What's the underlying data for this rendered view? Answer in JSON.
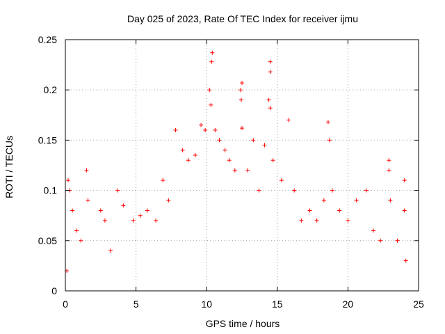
{
  "chart_data": {
    "type": "scatter",
    "title": "Day 025 of 2023, Rate Of TEC Index for receiver ijmu",
    "xlabel": "GPS time / hours",
    "ylabel": "ROTI / TECUs",
    "xlim": [
      0,
      25
    ],
    "ylim": [
      0,
      0.25
    ],
    "xticks": [
      "0",
      "5",
      "10",
      "15",
      "20",
      "25"
    ],
    "yticks": [
      "0",
      "0.05",
      "0.1",
      "0.15",
      "0.2",
      "0.25"
    ],
    "grid": true,
    "marker": "+",
    "color": "#ff0000",
    "series": [
      {
        "points": [
          [
            0.1,
            0.02
          ],
          [
            0.2,
            0.11
          ],
          [
            0.3,
            0.1
          ],
          [
            0.5,
            0.08
          ],
          [
            0.8,
            0.06
          ],
          [
            1.1,
            0.05
          ],
          [
            1.5,
            0.12
          ],
          [
            1.6,
            0.09
          ],
          [
            2.5,
            0.08
          ],
          [
            2.8,
            0.07
          ],
          [
            3.2,
            0.04
          ],
          [
            3.7,
            0.1
          ],
          [
            4.1,
            0.085
          ],
          [
            4.8,
            0.07
          ],
          [
            5.3,
            0.075
          ],
          [
            5.8,
            0.08
          ],
          [
            6.4,
            0.07
          ],
          [
            6.9,
            0.11
          ],
          [
            7.3,
            0.09
          ],
          [
            7.8,
            0.16
          ],
          [
            8.3,
            0.14
          ],
          [
            8.7,
            0.13
          ],
          [
            9.2,
            0.135
          ],
          [
            9.6,
            0.165
          ],
          [
            9.9,
            0.16
          ],
          [
            10.2,
            0.2
          ],
          [
            10.3,
            0.185
          ],
          [
            10.4,
            0.237
          ],
          [
            10.35,
            0.228
          ],
          [
            10.6,
            0.16
          ],
          [
            10.9,
            0.15
          ],
          [
            11.3,
            0.14
          ],
          [
            11.6,
            0.13
          ],
          [
            12.0,
            0.12
          ],
          [
            12.4,
            0.2
          ],
          [
            12.5,
            0.207
          ],
          [
            12.45,
            0.19
          ],
          [
            12.5,
            0.162
          ],
          [
            12.9,
            0.12
          ],
          [
            13.3,
            0.15
          ],
          [
            13.7,
            0.1
          ],
          [
            14.1,
            0.145
          ],
          [
            14.5,
            0.228
          ],
          [
            14.5,
            0.218
          ],
          [
            14.4,
            0.19
          ],
          [
            14.5,
            0.182
          ],
          [
            14.7,
            0.13
          ],
          [
            15.3,
            0.11
          ],
          [
            15.8,
            0.17
          ],
          [
            16.2,
            0.1
          ],
          [
            16.7,
            0.07
          ],
          [
            17.3,
            0.08
          ],
          [
            17.8,
            0.07
          ],
          [
            18.3,
            0.09
          ],
          [
            18.6,
            0.168
          ],
          [
            18.7,
            0.15
          ],
          [
            18.9,
            0.1
          ],
          [
            19.4,
            0.08
          ],
          [
            20.0,
            0.07
          ],
          [
            20.6,
            0.09
          ],
          [
            21.3,
            0.1
          ],
          [
            21.8,
            0.06
          ],
          [
            22.3,
            0.05
          ],
          [
            22.9,
            0.13
          ],
          [
            22.9,
            0.12
          ],
          [
            23.0,
            0.09
          ],
          [
            23.5,
            0.05
          ],
          [
            24.0,
            0.11
          ],
          [
            24.0,
            0.08
          ],
          [
            24.1,
            0.03
          ]
        ]
      }
    ]
  }
}
